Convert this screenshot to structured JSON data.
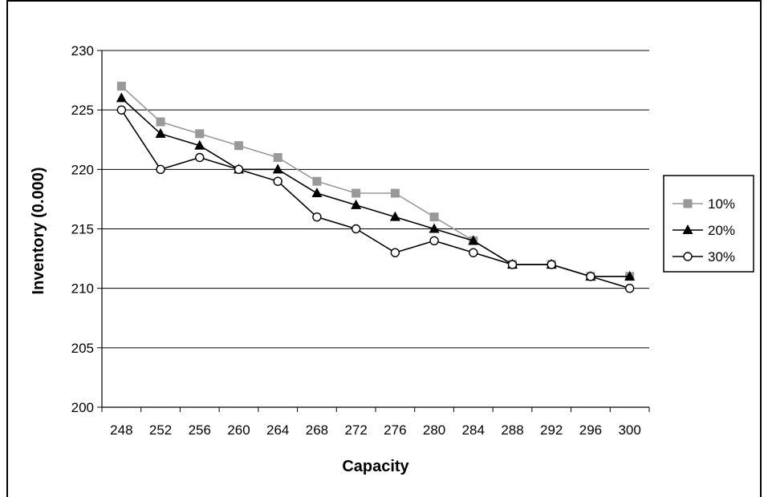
{
  "chart_data": {
    "type": "line",
    "title": "",
    "xlabel": "Capacity",
    "ylabel": "Inventory (0.000)",
    "categories": [
      "248",
      "252",
      "256",
      "260",
      "264",
      "268",
      "272",
      "276",
      "280",
      "284",
      "288",
      "292",
      "296",
      "300"
    ],
    "ylim": [
      200,
      230
    ],
    "yticks": [
      "200",
      "205",
      "210",
      "215",
      "220",
      "225",
      "230"
    ],
    "ytick_values": [
      200,
      205,
      210,
      215,
      220,
      225,
      230
    ],
    "grid": true,
    "legend_position": "right",
    "series": [
      {
        "name": "10%",
        "marker": "square",
        "color": "#999999",
        "line_color": "#999999",
        "values": [
          227,
          224,
          223,
          222,
          221,
          219,
          218,
          218,
          216,
          214,
          212,
          212,
          211,
          211
        ]
      },
      {
        "name": "20%",
        "marker": "triangle",
        "color": "#000000",
        "line_color": "#000000",
        "values": [
          226,
          223,
          222,
          220,
          220,
          218,
          217,
          216,
          215,
          214,
          212,
          212,
          211,
          211
        ]
      },
      {
        "name": "30%",
        "marker": "circle-open",
        "color": "#000000",
        "line_color": "#000000",
        "values": [
          225,
          220,
          221,
          220,
          219,
          216,
          215,
          213,
          214,
          213,
          212,
          212,
          211,
          210
        ]
      }
    ]
  }
}
